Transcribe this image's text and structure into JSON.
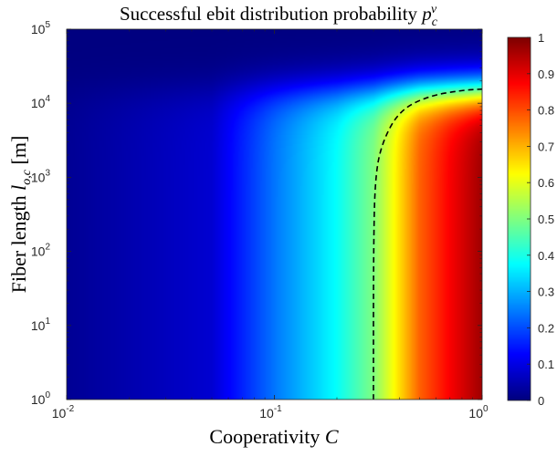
{
  "chart_data": {
    "type": "heatmap",
    "title": {
      "text": "Successful ebit distribution probability ",
      "symbol": "p",
      "subscript": "c",
      "superscript": "v"
    },
    "xlabel": {
      "text": "Cooperativity ",
      "symbol": "C"
    },
    "ylabel": {
      "text": "Fiber length ",
      "symbol": "l",
      "subscript": "o,c",
      "unit": "  [m]"
    },
    "x_scale": "log",
    "y_scale": "log",
    "xlim": [
      0.01,
      1
    ],
    "ylim": [
      1,
      100000
    ],
    "x_ticks": [
      {
        "base": "10",
        "exp": "-2",
        "value": 0.01
      },
      {
        "base": "10",
        "exp": "-1",
        "value": 0.1
      },
      {
        "base": "10",
        "exp": "0",
        "value": 1
      }
    ],
    "y_ticks": [
      {
        "base": "10",
        "exp": "0",
        "value": 1
      },
      {
        "base": "10",
        "exp": "1",
        "value": 10
      },
      {
        "base": "10",
        "exp": "2",
        "value": 100
      },
      {
        "base": "10",
        "exp": "3",
        "value": 1000
      },
      {
        "base": "10",
        "exp": "4",
        "value": 10000
      },
      {
        "base": "10",
        "exp": "5",
        "value": 100000
      }
    ],
    "colormap": "jet",
    "colorbar": {
      "range": [
        0,
        1
      ],
      "ticks": [
        "0",
        "0.1",
        "0.2",
        "0.3",
        "0.4",
        "0.5",
        "0.6",
        "0.7",
        "0.8",
        "0.9",
        "1"
      ],
      "position": "right"
    },
    "z_model": {
      "description_of_field": "probability increases with cooperativity and drops off beyond roughly 10^4 m",
      "z_at_C": [
        [
          0.01,
          0.02
        ],
        [
          0.05,
          0.08
        ],
        [
          0.1,
          0.24
        ],
        [
          0.2,
          0.38
        ],
        [
          0.3,
          0.5
        ],
        [
          0.5,
          0.78
        ],
        [
          0.7,
          0.88
        ],
        [
          1.0,
          0.97
        ]
      ],
      "length_rolloff_m": 15000
    },
    "contour": {
      "level": 0.5,
      "style": "dashed",
      "color": "#000000",
      "points": [
        [
          0.3,
          1
        ],
        [
          0.3,
          100
        ],
        [
          0.305,
          1000
        ],
        [
          0.33,
          3000
        ],
        [
          0.4,
          8000
        ],
        [
          0.55,
          12500
        ],
        [
          0.8,
          15000
        ],
        [
          1.0,
          15500
        ]
      ]
    }
  }
}
